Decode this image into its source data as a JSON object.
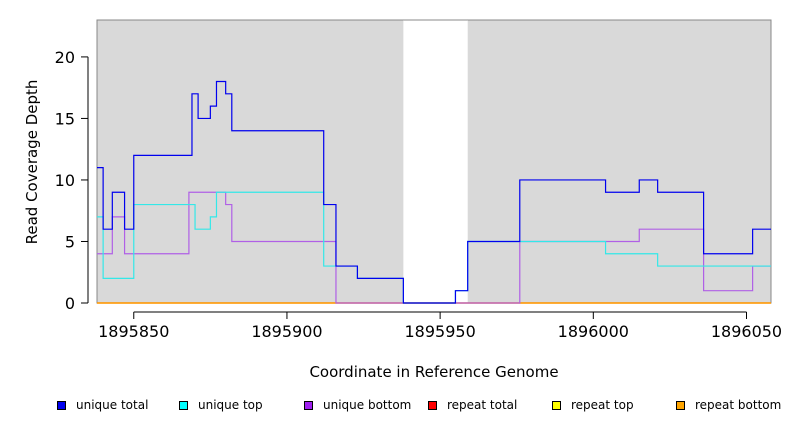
{
  "chart_data": {
    "type": "line",
    "step": true,
    "xlabel": "Coordinate in Reference Genome",
    "ylabel": "Read Coverage Depth",
    "xlim": [
      1895838,
      1896058
    ],
    "ylim": [
      0,
      23
    ],
    "x_ticks": [
      1895850,
      1895900,
      1895950,
      1896000,
      1896050
    ],
    "x_tick_labels": [
      "1895850",
      "1895900",
      "1895950",
      "1896000",
      "1896050"
    ],
    "y_ticks": [
      0,
      5,
      10,
      15,
      20
    ],
    "y_tick_labels": [
      "0",
      "5",
      "10",
      "15",
      "20"
    ],
    "gap_region": [
      1895938,
      1895959
    ],
    "series": [
      {
        "name": "unique total",
        "color": "#0000ee",
        "steps": [
          [
            1895838,
            11
          ],
          [
            1895840,
            6
          ],
          [
            1895843,
            9
          ],
          [
            1895847,
            6
          ],
          [
            1895850,
            12
          ],
          [
            1895869,
            17
          ],
          [
            1895871,
            15
          ],
          [
            1895875,
            16
          ],
          [
            1895877,
            18
          ],
          [
            1895880,
            17
          ],
          [
            1895882,
            14
          ],
          [
            1895912,
            8
          ],
          [
            1895916,
            3
          ],
          [
            1895923,
            2
          ],
          [
            1895938,
            0
          ],
          [
            1895955,
            1
          ],
          [
            1895959,
            5
          ],
          [
            1895976,
            10
          ],
          [
            1896004,
            9
          ],
          [
            1896015,
            10
          ],
          [
            1896021,
            9
          ],
          [
            1896036,
            4
          ],
          [
            1896052,
            6
          ],
          [
            1896058,
            6
          ]
        ]
      },
      {
        "name": "unique top",
        "color": "#33e8e8",
        "steps": [
          [
            1895838,
            7
          ],
          [
            1895840,
            2
          ],
          [
            1895850,
            8
          ],
          [
            1895870,
            6
          ],
          [
            1895875,
            7
          ],
          [
            1895877,
            9
          ],
          [
            1895912,
            3
          ],
          [
            1895916,
            3
          ],
          [
            1895923,
            2
          ],
          [
            1895938,
            0
          ],
          [
            1895955,
            1
          ],
          [
            1895959,
            5
          ],
          [
            1895976,
            5
          ],
          [
            1896004,
            4
          ],
          [
            1896021,
            3
          ],
          [
            1896052,
            3
          ],
          [
            1896058,
            3
          ]
        ]
      },
      {
        "name": "unique bottom",
        "color": "#b060e6",
        "steps": [
          [
            1895838,
            4
          ],
          [
            1895843,
            7
          ],
          [
            1895847,
            4
          ],
          [
            1895868,
            9
          ],
          [
            1895880,
            8
          ],
          [
            1895882,
            5
          ],
          [
            1895916,
            0
          ],
          [
            1895976,
            5
          ],
          [
            1896015,
            6
          ],
          [
            1896036,
            1
          ],
          [
            1896052,
            3
          ],
          [
            1896058,
            3
          ]
        ]
      },
      {
        "name": "repeat total",
        "color": "#ff0000",
        "steps": [
          [
            1895838,
            0
          ],
          [
            1896058,
            0
          ]
        ]
      },
      {
        "name": "repeat top",
        "color": "#ffff00",
        "steps": [
          [
            1895838,
            0
          ],
          [
            1896058,
            0
          ]
        ]
      },
      {
        "name": "repeat bottom",
        "color": "#ff9900",
        "steps": [
          [
            1895838,
            0
          ],
          [
            1896058,
            0
          ]
        ]
      }
    ],
    "legend": [
      {
        "label": "unique total",
        "color": "#0000ee"
      },
      {
        "label": "unique top",
        "color": "#00ffff"
      },
      {
        "label": "unique bottom",
        "color": "#a020f0"
      },
      {
        "label": "repeat total",
        "color": "#ff0000"
      },
      {
        "label": "repeat top",
        "color": "#ffff00"
      },
      {
        "label": "repeat bottom",
        "color": "#ffa500"
      }
    ],
    "legend_position": "bottom"
  }
}
